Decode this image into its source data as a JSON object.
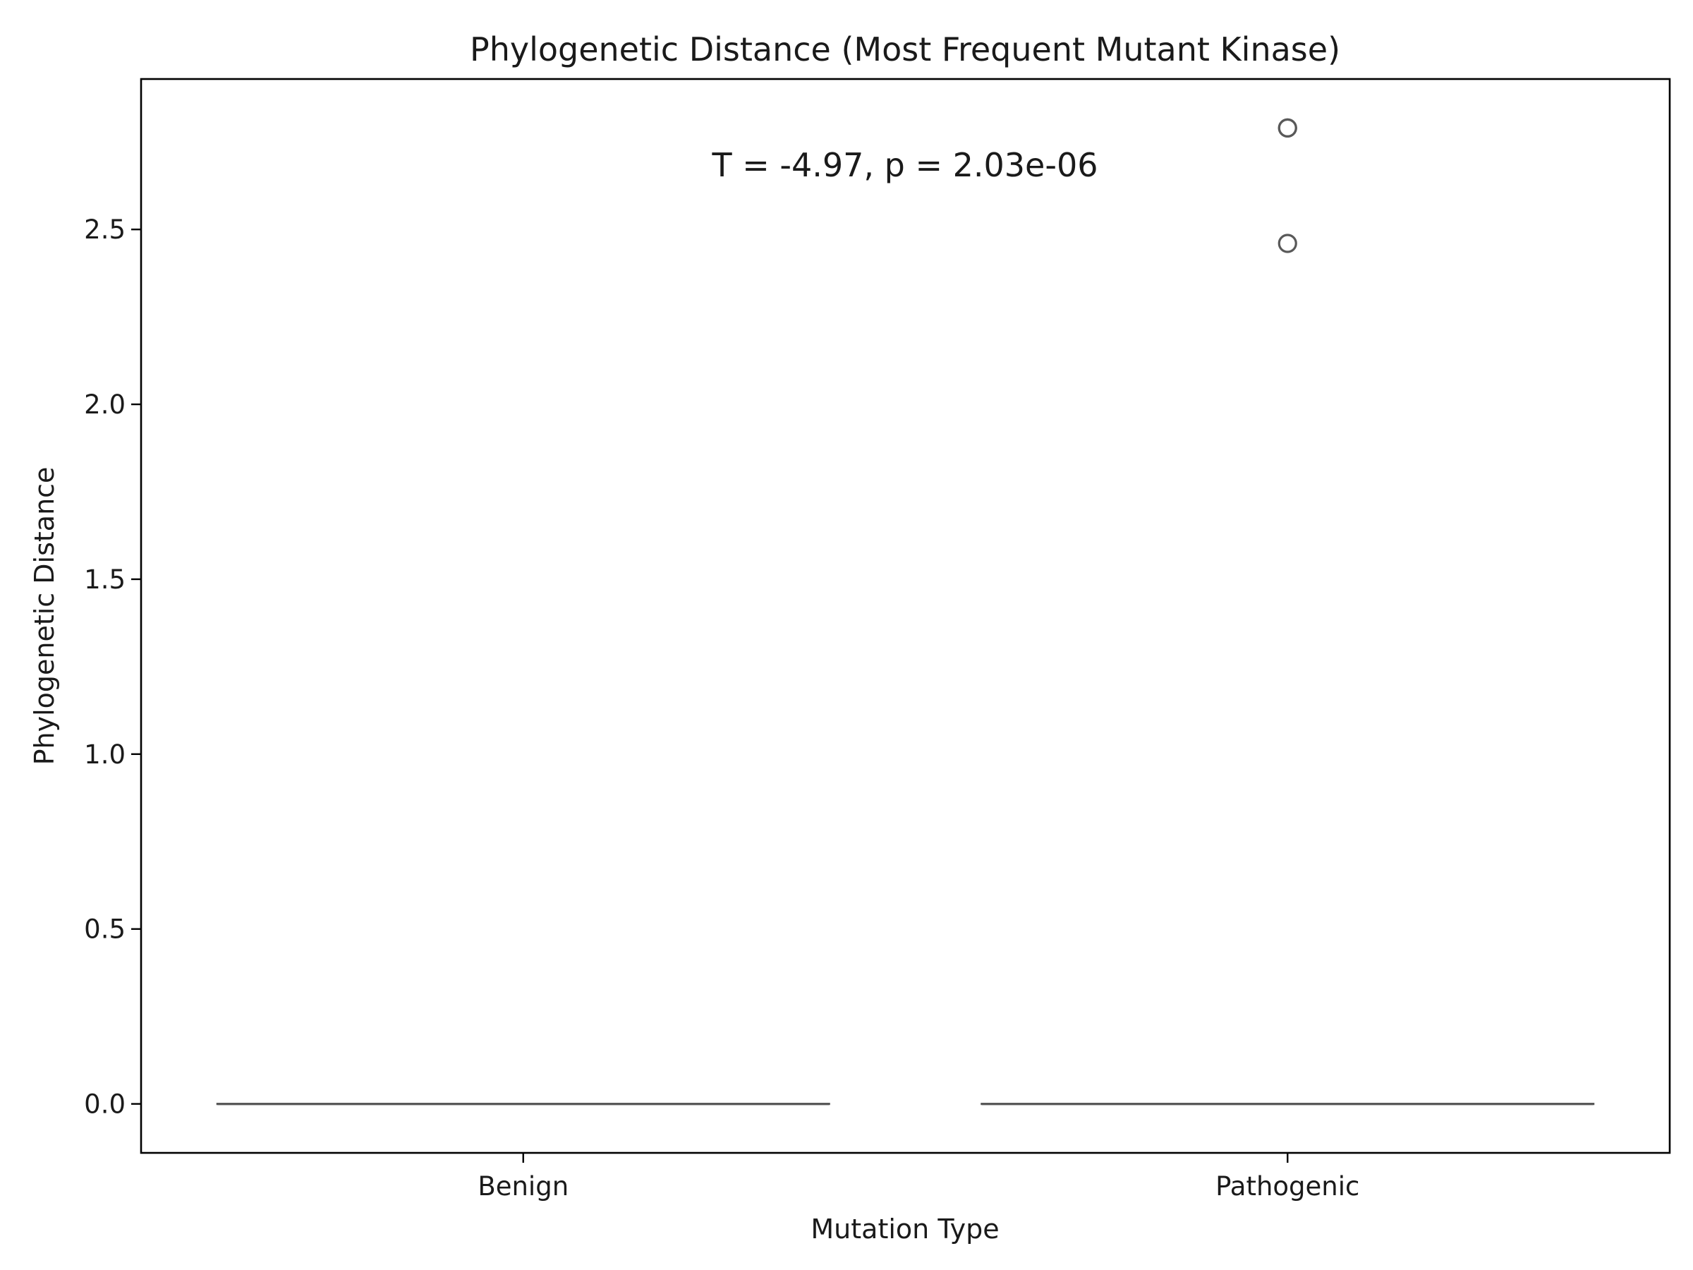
{
  "chart_data": {
    "type": "box",
    "title": "Phylogenetic Distance (Most Frequent Mutant Kinase)",
    "xlabel": "Mutation Type",
    "ylabel": "Phylogenetic Distance",
    "categories": [
      "Benign",
      "Pathogenic"
    ],
    "ylim": [
      -0.14,
      2.93
    ],
    "yticks": [
      0.0,
      0.5,
      1.0,
      1.5,
      2.0,
      2.5
    ],
    "ytick_labels": [
      "0.0",
      "0.5",
      "1.0",
      "1.5",
      "2.0",
      "2.5"
    ],
    "boxes": [
      {
        "category": "Benign",
        "whisker_low": 0.0,
        "q1": 0.0,
        "median": 0.0,
        "q3": 0.0,
        "whisker_high": 0.0,
        "outliers": []
      },
      {
        "category": "Pathogenic",
        "whisker_low": 0.0,
        "q1": 0.0,
        "median": 0.0,
        "q3": 0.0,
        "whisker_high": 0.0,
        "outliers": [
          2.79,
          2.79,
          2.46
        ]
      }
    ],
    "annotation": "T = -4.97, p = 2.03e-06",
    "grid": false,
    "legend": "none",
    "colors": {
      "box": "#595959",
      "frame": "#000000"
    }
  }
}
